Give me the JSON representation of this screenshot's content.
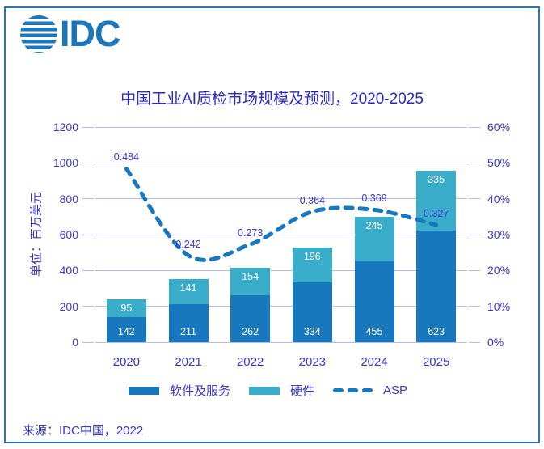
{
  "logo": {
    "text": "IDC"
  },
  "title": "中国工业AI质检市场规模及预测，2020-2025",
  "source": "来源：IDC中国，2022",
  "colors": {
    "bar_software": "#1878BE",
    "bar_hardware": "#39ADC9",
    "asp_line": "#1878BE",
    "text_blue": "#3A37CB",
    "title_blue": "#2B28C5",
    "gridline": "#B8B8EA",
    "frame_border": "#2E75B6",
    "logo_blue": "#1C76BC",
    "bar_value_text": "#FFFFFF"
  },
  "chart_data": {
    "type": "bar",
    "subtype": "stacked-bars-with-line",
    "title": "中国工业AI质检市场规模及预测，2020-2025",
    "categories": [
      "2020",
      "2021",
      "2022",
      "2023",
      "2024",
      "2025"
    ],
    "series": [
      {
        "name": "软件及服务",
        "type": "bar",
        "axis": "left",
        "values": [
          142,
          211,
          262,
          334,
          455,
          623
        ]
      },
      {
        "name": "硬件",
        "type": "bar",
        "axis": "left",
        "values": [
          95,
          141,
          154,
          196,
          245,
          335
        ]
      },
      {
        "name": "ASP",
        "type": "dashed-line",
        "axis": "right",
        "values": [
          0.484,
          0.242,
          0.273,
          0.364,
          0.369,
          0.327
        ]
      }
    ],
    "left_axis": {
      "title": "单位：百万美元",
      "min": 0,
      "max": 1200,
      "step": 200,
      "ticks": [
        "0",
        "200",
        "400",
        "600",
        "800",
        "1000",
        "1200"
      ]
    },
    "right_axis": {
      "min": 0,
      "max": 0.6,
      "step": 0.1,
      "ticks": [
        "0%",
        "10%",
        "20%",
        "30%",
        "40%",
        "50%",
        "60%"
      ]
    },
    "grid": true,
    "legend_position": "bottom",
    "legend": [
      "软件及服务",
      "硬件",
      "ASP"
    ]
  }
}
